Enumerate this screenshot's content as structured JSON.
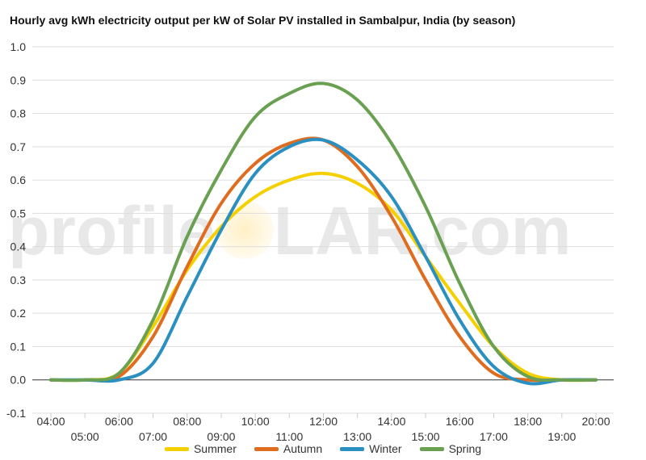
{
  "watermark": {
    "before": "profile",
    "after": "LAR.com"
  },
  "chart_data": {
    "type": "line",
    "title": "Hourly avg kWh electricity output per kW of Solar PV installed in Sambalpur, India (by season)",
    "xlabel": "",
    "ylabel": "",
    "ylim": [
      -0.1,
      1.0
    ],
    "yticks": [
      "-0.1",
      "0.0",
      "0.1",
      "0.2",
      "0.3",
      "0.4",
      "0.5",
      "0.6",
      "0.7",
      "0.8",
      "0.9",
      "1.0"
    ],
    "x": [
      "04:00",
      "05:00",
      "06:00",
      "07:00",
      "08:00",
      "09:00",
      "10:00",
      "11:00",
      "12:00",
      "13:00",
      "14:00",
      "15:00",
      "16:00",
      "17:00",
      "18:00",
      "19:00",
      "20:00"
    ],
    "grid": true,
    "legend_position": "bottom",
    "series": [
      {
        "name": "Summer",
        "color": "#f5d000",
        "values": [
          0.0,
          0.0,
          0.02,
          0.16,
          0.33,
          0.46,
          0.55,
          0.6,
          0.62,
          0.59,
          0.51,
          0.37,
          0.23,
          0.1,
          0.02,
          0.0,
          0.0
        ]
      },
      {
        "name": "Autumn",
        "color": "#e06c1f",
        "values": [
          0.0,
          0.0,
          0.01,
          0.13,
          0.34,
          0.53,
          0.65,
          0.71,
          0.72,
          0.64,
          0.49,
          0.3,
          0.13,
          0.02,
          0.0,
          0.0,
          0.0
        ]
      },
      {
        "name": "Winter",
        "color": "#2a8fc1",
        "values": [
          0.0,
          0.0,
          0.0,
          0.05,
          0.25,
          0.45,
          0.62,
          0.7,
          0.72,
          0.66,
          0.55,
          0.37,
          0.18,
          0.04,
          -0.01,
          0.0,
          0.0
        ]
      },
      {
        "name": "Spring",
        "color": "#6aa052",
        "values": [
          0.0,
          0.0,
          0.02,
          0.18,
          0.43,
          0.63,
          0.79,
          0.86,
          0.89,
          0.84,
          0.71,
          0.52,
          0.29,
          0.1,
          0.01,
          0.0,
          0.0
        ]
      }
    ]
  }
}
